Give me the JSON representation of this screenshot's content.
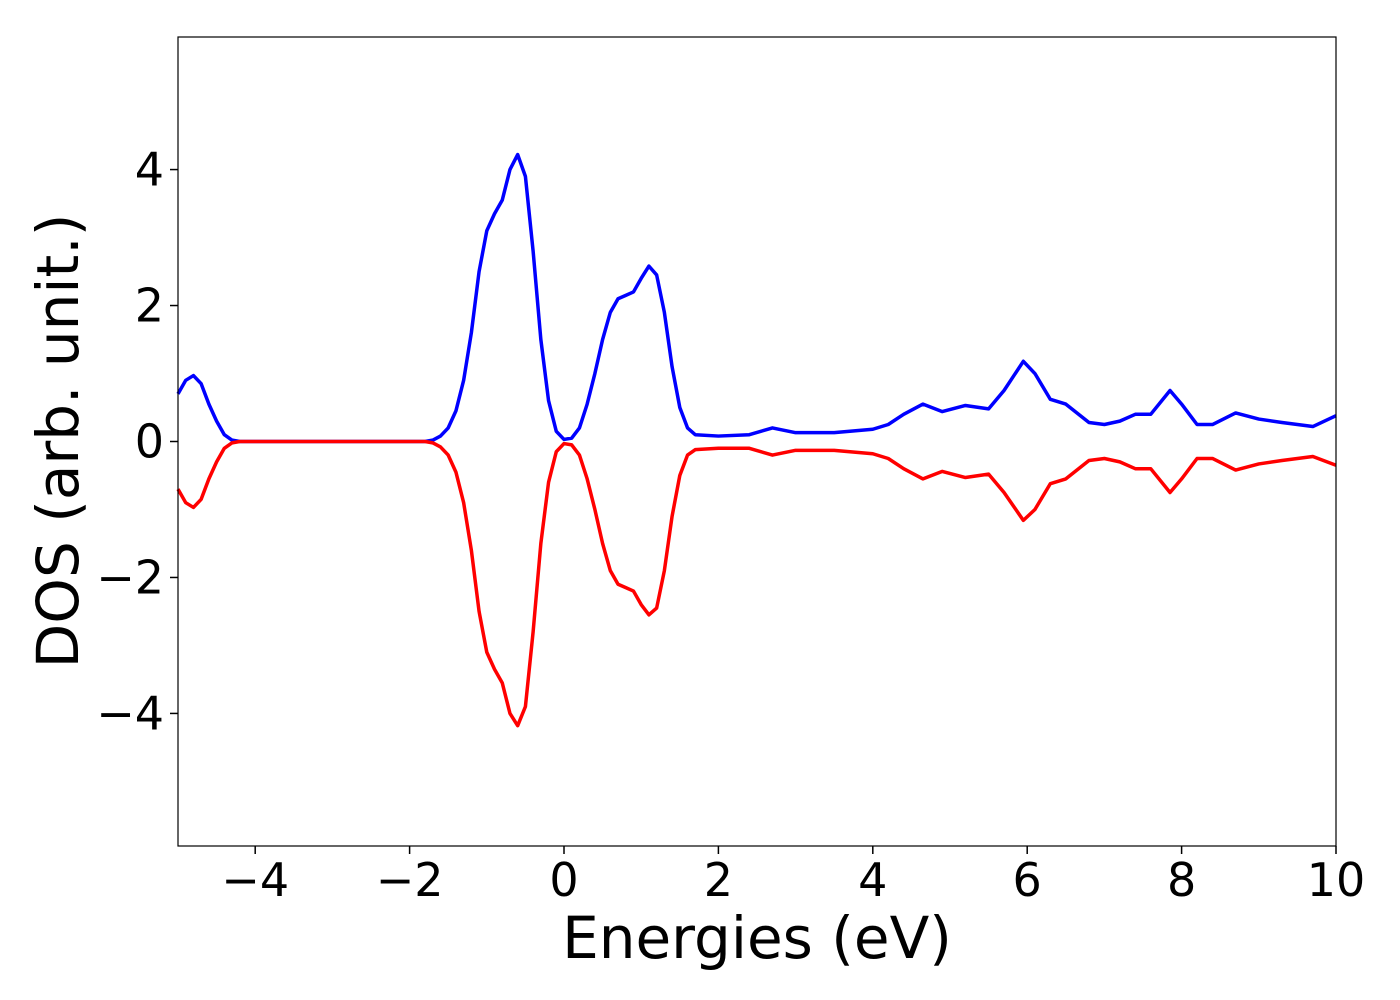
{
  "chart_data": {
    "type": "line",
    "xlabel": "Energies (eV)",
    "ylabel": "DOS (arb. unit.)",
    "x": [
      -5,
      -4.9,
      -4.8,
      -4.7,
      -4.6,
      -4.5,
      -4.4,
      -4.3,
      -4.2,
      -3,
      -1.8,
      -1.7,
      -1.6,
      -1.5,
      -1.4,
      -1.3,
      -1.2,
      -1.1,
      -1.0,
      -0.9,
      -0.8,
      -0.7,
      -0.6,
      -0.5,
      -0.4,
      -0.3,
      -0.2,
      -0.1,
      0,
      0.1,
      0.2,
      0.3,
      0.4,
      0.5,
      0.6,
      0.7,
      0.8,
      0.9,
      1.0,
      1.1,
      1.2,
      1.3,
      1.4,
      1.5,
      1.6,
      1.7,
      2.0,
      2.4,
      2.7,
      3.0,
      3.5,
      4.0,
      4.2,
      4.4,
      4.65,
      4.9,
      5.2,
      5.5,
      5.7,
      5.95,
      6.1,
      6.3,
      6.5,
      6.8,
      7.0,
      7.2,
      7.4,
      7.6,
      7.85,
      8.0,
      8.2,
      8.4,
      8.7,
      9.0,
      9.3,
      9.7,
      10.0
    ],
    "series": [
      {
        "color": "#0000ff",
        "values": [
          0.7,
          0.9,
          0.97,
          0.85,
          0.55,
          0.3,
          0.1,
          0.02,
          0,
          0,
          0,
          0.02,
          0.08,
          0.2,
          0.45,
          0.9,
          1.6,
          2.5,
          3.1,
          3.35,
          3.55,
          4.0,
          4.22,
          3.9,
          2.8,
          1.5,
          0.6,
          0.15,
          0.03,
          0.05,
          0.2,
          0.55,
          1.0,
          1.5,
          1.9,
          2.1,
          2.15,
          2.2,
          2.4,
          2.58,
          2.45,
          1.9,
          1.1,
          0.5,
          0.2,
          0.1,
          0.08,
          0.1,
          0.2,
          0.13,
          0.13,
          0.18,
          0.25,
          0.4,
          0.55,
          0.44,
          0.53,
          0.48,
          0.75,
          1.18,
          1.0,
          0.62,
          0.55,
          0.28,
          0.25,
          0.3,
          0.4,
          0.4,
          0.75,
          0.55,
          0.25,
          0.25,
          0.42,
          0.33,
          0.28,
          0.22,
          0.38
        ]
      },
      {
        "color": "#ff0000",
        "values": [
          -0.7,
          -0.9,
          -0.97,
          -0.85,
          -0.55,
          -0.3,
          -0.1,
          -0.02,
          0,
          0,
          0,
          -0.02,
          -0.08,
          -0.2,
          -0.45,
          -0.9,
          -1.6,
          -2.5,
          -3.1,
          -3.35,
          -3.55,
          -4.0,
          -4.18,
          -3.9,
          -2.8,
          -1.5,
          -0.6,
          -0.15,
          -0.03,
          -0.05,
          -0.2,
          -0.55,
          -1.0,
          -1.5,
          -1.9,
          -2.1,
          -2.15,
          -2.2,
          -2.4,
          -2.55,
          -2.45,
          -1.9,
          -1.1,
          -0.5,
          -0.2,
          -0.12,
          -0.1,
          -0.1,
          -0.2,
          -0.13,
          -0.13,
          -0.18,
          -0.25,
          -0.4,
          -0.55,
          -0.44,
          -0.53,
          -0.48,
          -0.75,
          -1.16,
          -1.0,
          -0.62,
          -0.55,
          -0.28,
          -0.25,
          -0.3,
          -0.4,
          -0.4,
          -0.75,
          -0.55,
          -0.25,
          -0.25,
          -0.42,
          -0.33,
          -0.28,
          -0.22,
          -0.35
        ]
      }
    ],
    "xlim": [
      -5,
      10
    ],
    "xticks": [
      {
        "value": -4,
        "label": "−4"
      },
      {
        "value": -2,
        "label": "−2"
      },
      0,
      2,
      4,
      6,
      8,
      10
    ],
    "ylim": [
      -5.95,
      5.95
    ],
    "yticks": [
      {
        "value": -4,
        "label": "−4"
      },
      {
        "value": -2,
        "label": "−2"
      },
      0,
      2,
      4
    ]
  }
}
